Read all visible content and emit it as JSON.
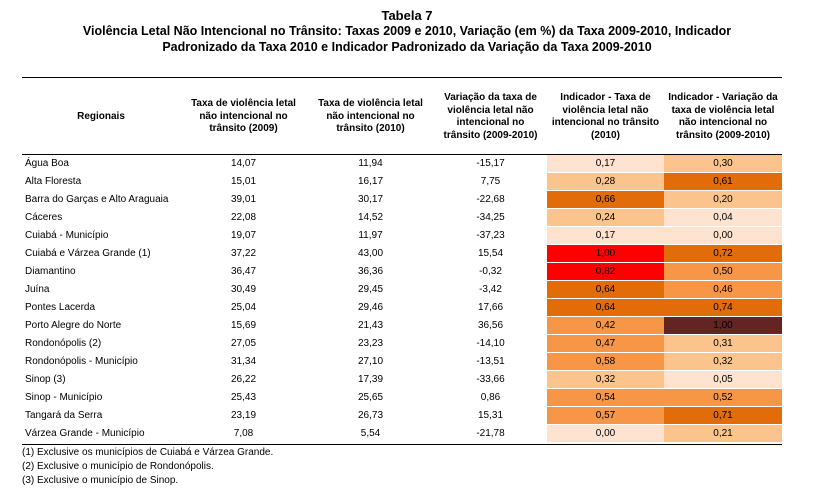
{
  "title": {
    "line1": "Tabela 7",
    "line2": "Violência Letal Não Intencional no Trânsito: Taxas 2009 e 2010, Variação (em %) da Taxa 2009-2010, Indicador",
    "line3": "Padronizado da Taxa 2010 e Indicador Padronizado da Variação da Taxa 2009-2010"
  },
  "headers": [
    "Regionais",
    "Taxa de violência letal não intencional no trânsito (2009)",
    "Taxa de violência letal não intencional no trânsito (2010)",
    "Variação da taxa de violência letal não intencional no trânsito (2009-2010)",
    "Indicador - Taxa de violência letal não intencional no trânsito (2010)",
    "Indicador - Variação da taxa de violência letal não intencional no trânsito (2009-2010)"
  ],
  "rows": [
    {
      "name": "Água Boa",
      "t2009": "14,07",
      "t2010": "11,94",
      "var": "-15,17",
      "ind_taxa": "0,17",
      "ind_var": "0,30",
      "ind_taxa_color": "#fde3d0",
      "ind_var_color": "#fcc48d"
    },
    {
      "name": "Alta Floresta",
      "t2009": "15,01",
      "t2010": "16,17",
      "var": "7,75",
      "ind_taxa": "0,28",
      "ind_var": "0,61",
      "ind_taxa_color": "#fcc48d",
      "ind_var_color": "#e26b0a"
    },
    {
      "name": "Barra do Garças e Alto Araguaia",
      "t2009": "39,01",
      "t2010": "30,17",
      "var": "-22,68",
      "ind_taxa": "0,66",
      "ind_var": "0,20",
      "ind_taxa_color": "#e26b0a",
      "ind_var_color": "#fcc48d"
    },
    {
      "name": "Cáceres",
      "t2009": "22,08",
      "t2010": "14,52",
      "var": "-34,25",
      "ind_taxa": "0,24",
      "ind_var": "0,04",
      "ind_taxa_color": "#fcc48d",
      "ind_var_color": "#fde3d0"
    },
    {
      "name": "Cuiabá - Município",
      "t2009": "19,07",
      "t2010": "11,97",
      "var": "-37,23",
      "ind_taxa": "0,17",
      "ind_var": "0,00",
      "ind_taxa_color": "#fde3d0",
      "ind_var_color": "#fde3d0"
    },
    {
      "name": "Cuiabá e Várzea Grande (1)",
      "t2009": "37,22",
      "t2010": "43,00",
      "var": "15,54",
      "ind_taxa": "1,00",
      "ind_var": "0,72",
      "ind_taxa_color": "#ff0000",
      "ind_var_color": "#e26b0a"
    },
    {
      "name": "Diamantino",
      "t2009": "36,47",
      "t2010": "36,36",
      "var": "-0,32",
      "ind_taxa": "0,82",
      "ind_var": "0,50",
      "ind_taxa_color": "#ff0000",
      "ind_var_color": "#f79646"
    },
    {
      "name": "Juína",
      "t2009": "30,49",
      "t2010": "29,45",
      "var": "-3,42",
      "ind_taxa": "0,64",
      "ind_var": "0,46",
      "ind_taxa_color": "#e26b0a",
      "ind_var_color": "#f79646"
    },
    {
      "name": "Pontes Lacerda",
      "t2009": "25,04",
      "t2010": "29,46",
      "var": "17,66",
      "ind_taxa": "0,64",
      "ind_var": "0,74",
      "ind_taxa_color": "#e26b0a",
      "ind_var_color": "#e26b0a"
    },
    {
      "name": "Porto Alegre do Norte",
      "t2009": "15,69",
      "t2010": "21,43",
      "var": "36,56",
      "ind_taxa": "0,42",
      "ind_var": "1,00",
      "ind_taxa_color": "#f79646",
      "ind_var_color": "#632523"
    },
    {
      "name": "Rondonópolis (2)",
      "t2009": "27,05",
      "t2010": "23,23",
      "var": "-14,10",
      "ind_taxa": "0,47",
      "ind_var": "0,31",
      "ind_taxa_color": "#f79646",
      "ind_var_color": "#fcc48d"
    },
    {
      "name": "Rondonópolis - Município",
      "t2009": "31,34",
      "t2010": "27,10",
      "var": "-13,51",
      "ind_taxa": "0,58",
      "ind_var": "0,32",
      "ind_taxa_color": "#f79646",
      "ind_var_color": "#fcc48d"
    },
    {
      "name": "Sinop (3)",
      "t2009": "26,22",
      "t2010": "17,39",
      "var": "-33,66",
      "ind_taxa": "0,32",
      "ind_var": "0,05",
      "ind_taxa_color": "#fcc48d",
      "ind_var_color": "#fde3d0"
    },
    {
      "name": "Sinop - Município",
      "t2009": "25,43",
      "t2010": "25,65",
      "var": "0,86",
      "ind_taxa": "0,54",
      "ind_var": "0,52",
      "ind_taxa_color": "#f79646",
      "ind_var_color": "#f79646"
    },
    {
      "name": "Tangará da Serra",
      "t2009": "23,19",
      "t2010": "26,73",
      "var": "15,31",
      "ind_taxa": "0,57",
      "ind_var": "0,71",
      "ind_taxa_color": "#f79646",
      "ind_var_color": "#e26b0a"
    },
    {
      "name": "Várzea Grande - Município",
      "t2009": "7,08",
      "t2010": "5,54",
      "var": "-21,78",
      "ind_taxa": "0,00",
      "ind_var": "0,21",
      "ind_taxa_color": "#fde3d0",
      "ind_var_color": "#fcc48d"
    }
  ],
  "footnotes": [
    "(1) Exclusive os municípios de Cuiabá e Várzea Grande.",
    "(2) Exclusive o município de Rondonópolis.",
    "(3) Exclusive o município de Sinop."
  ]
}
